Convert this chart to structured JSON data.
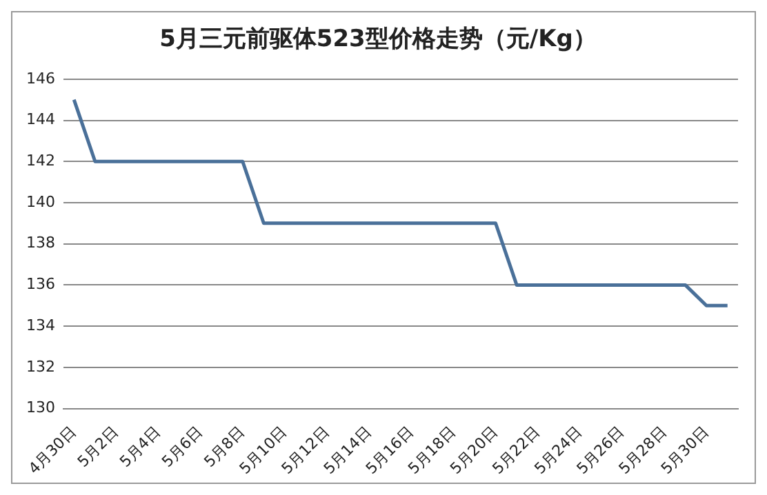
{
  "chart_data": {
    "type": "line",
    "title": "5月三元前驱体523型价格走势（元/Kg）",
    "categories": [
      "4月30日",
      null,
      "5月2日",
      null,
      "5月4日",
      null,
      "5月6日",
      null,
      "5月8日",
      null,
      "5月10日",
      null,
      "5月12日",
      null,
      "5月14日",
      null,
      "5月16日",
      null,
      "5月18日",
      null,
      "5月20日",
      null,
      "5月22日",
      null,
      "5月24日",
      null,
      "5月26日",
      null,
      "5月28日",
      null,
      "5月30日",
      null
    ],
    "series": [
      {
        "color": "#4a7099",
        "values": [
          145,
          142,
          142,
          142,
          142,
          142,
          142,
          142,
          142,
          139,
          139,
          139,
          139,
          139,
          139,
          139,
          139,
          139,
          139,
          139,
          139,
          136,
          136,
          136,
          136,
          136,
          136,
          136,
          136,
          136,
          135,
          135
        ]
      }
    ],
    "ylim": [
      130,
      146
    ],
    "yticks": [
      130,
      132,
      134,
      136,
      138,
      140,
      142,
      144,
      146
    ],
    "grid": "y",
    "legend": false,
    "marker": "none"
  }
}
